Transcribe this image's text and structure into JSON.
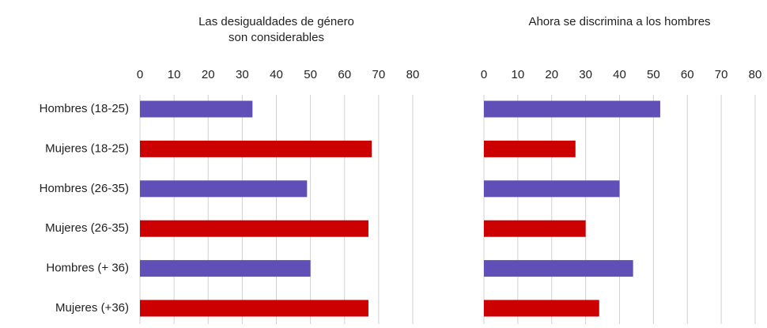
{
  "chart_data": [
    {
      "type": "hbar",
      "title": [
        "Las desigualdades de género",
        "son considerables"
      ],
      "categories": [
        "Hombres (18-25)",
        "Mujeres (18-25)",
        "Hombres (26-35)",
        "Mujeres (26-35)",
        "Hombres (+ 36)",
        "Mujeres (+36)"
      ],
      "values": [
        33,
        68,
        49,
        67,
        50,
        67
      ],
      "colors": [
        "#5f4fb6",
        "#cc0000",
        "#5f4fb6",
        "#cc0000",
        "#5f4fb6",
        "#cc0000"
      ],
      "xlim": [
        0,
        80
      ],
      "xticks": [
        0,
        10,
        20,
        30,
        40,
        50,
        60,
        70,
        80
      ],
      "grid": true
    },
    {
      "type": "hbar",
      "title": [
        "Ahora se discrimina a los hombres"
      ],
      "values": [
        52,
        27,
        40,
        30,
        44,
        34
      ],
      "colors": [
        "#5f4fb6",
        "#cc0000",
        "#5f4fb6",
        "#cc0000",
        "#5f4fb6",
        "#cc0000"
      ],
      "xlim": [
        0,
        80
      ],
      "xticks": [
        0,
        10,
        20,
        30,
        40,
        50,
        60,
        70,
        80
      ],
      "grid": true
    }
  ]
}
